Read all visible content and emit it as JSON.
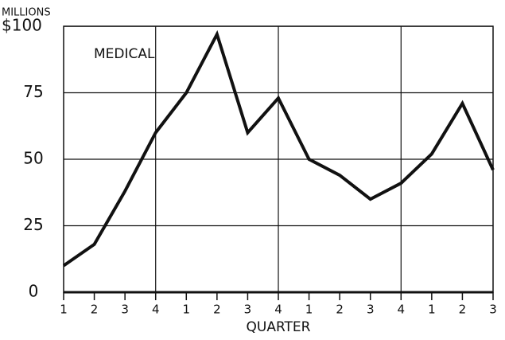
{
  "chart_data": {
    "type": "line",
    "unit_label": "MILLIONS",
    "annotation": "MEDICAL",
    "x_label": "QUARTER",
    "categories": [
      "1",
      "2",
      "3",
      "4",
      "1",
      "2",
      "3",
      "4",
      "1",
      "2",
      "3",
      "4",
      "1",
      "2",
      "3"
    ],
    "series": [
      {
        "name": "MEDICAL",
        "color": "#111111",
        "values": [
          10,
          18,
          38,
          60,
          75,
          97,
          60,
          73,
          50,
          44,
          35,
          41,
          52,
          71,
          46
        ]
      }
    ],
    "ylim": [
      0,
      100
    ],
    "yticks": [
      0,
      25,
      50,
      75,
      {
        "value": 100,
        "label": "$100"
      }
    ],
    "grid": true
  }
}
